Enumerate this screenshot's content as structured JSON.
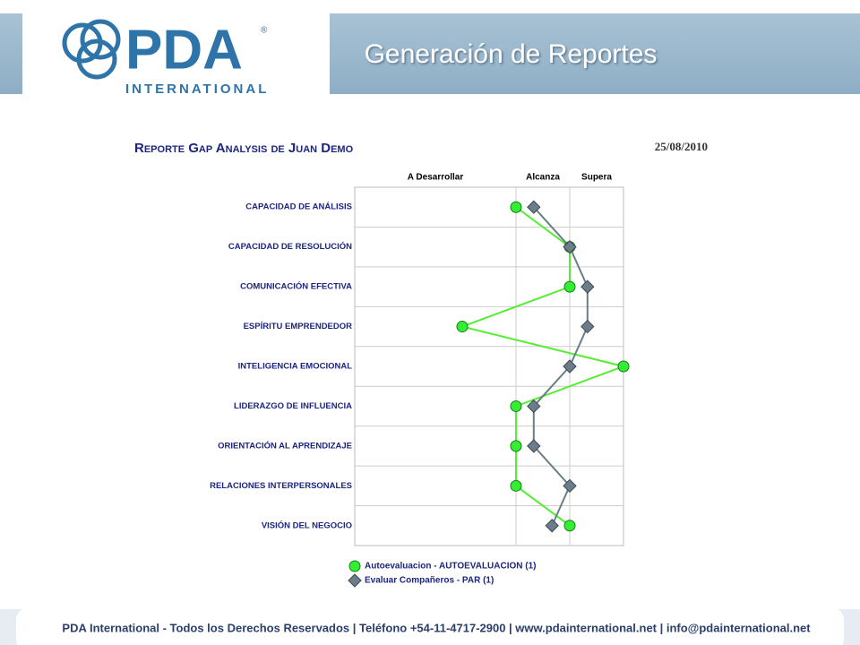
{
  "header": {
    "logo": "PDA",
    "logo_mark": "®",
    "logo_sub": "INTERNATIONAL",
    "title": "Generación de Reportes"
  },
  "chart_data": {
    "type": "line",
    "title": "Reporte Gap Analysis de Juan Demo",
    "date": "25/08/2010",
    "categories": [
      "CAPACIDAD DE ANÁLISIS",
      "CAPACIDAD DE RESOLUCIÓN",
      "COMUNICACIÓN EFECTIVA",
      "ESPÍRITU EMPRENDEDOR",
      "INTELIGENCIA EMOCIONAL",
      "LIDERAZGO DE INFLUENCIA",
      "ORIENTACIÓN AL APRENDIZAJE",
      "RELACIONES INTERPERSONALES",
      "VISIÓN DEL NEGOCIO"
    ],
    "xlim": [
      0,
      5
    ],
    "bands": [
      {
        "label": "A Desarrollar",
        "from": 0,
        "to": 3
      },
      {
        "label": "Alcanza",
        "from": 3,
        "to": 4
      },
      {
        "label": "Supera",
        "from": 4,
        "to": 5
      }
    ],
    "series": [
      {
        "name": "Autoevaluacion - AUTOEVALUACION (1)",
        "marker": "circle",
        "color": "#33ee33",
        "values": [
          3,
          4,
          4,
          2,
          5,
          3,
          3,
          3,
          4
        ]
      },
      {
        "name": "Evaluar Compañeros - PAR (1)",
        "marker": "diamond",
        "color": "#6b7d88",
        "values": [
          3.33,
          4,
          4.33,
          4.33,
          4,
          3.33,
          3.33,
          4,
          3.67
        ]
      }
    ]
  },
  "footer": "PDA International - Todos los Derechos Reservados | Teléfono +54-11-4717-2900 | www.pdainternational.net  | info@pdainternational.net"
}
